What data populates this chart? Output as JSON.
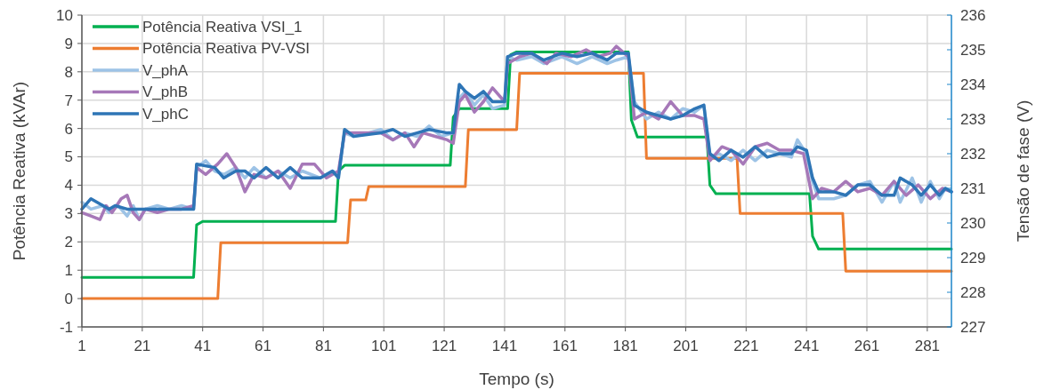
{
  "chart_data": {
    "type": "line",
    "xlabel": "Tempo (s)",
    "ylabel": "Potência Reativa (kVAr)",
    "y2label": "Tensão de fase (V)",
    "xlim": [
      1,
      289
    ],
    "xticks": [
      1,
      21,
      41,
      61,
      81,
      101,
      121,
      141,
      161,
      181,
      201,
      221,
      241,
      261,
      281
    ],
    "ylim": [
      -1,
      10
    ],
    "yticks": [
      -1,
      0,
      1,
      2,
      3,
      4,
      5,
      6,
      7,
      8,
      9,
      10
    ],
    "y2lim": [
      227,
      236
    ],
    "y2ticks": [
      227,
      228,
      229,
      230,
      231,
      232,
      233,
      234,
      235,
      236
    ],
    "grid": true,
    "legend": "top left",
    "line_style": "solid",
    "marker": "none",
    "series": [
      {
        "name": "Potência Reativa VSI_1",
        "color": "#00b050",
        "x": [
          1,
          38,
          39,
          41,
          85,
          86,
          88,
          123,
          124,
          126,
          142,
          143,
          145,
          182,
          183,
          185,
          208,
          209,
          211,
          242,
          243,
          245,
          289
        ],
        "values": [
          0.75,
          0.75,
          2.6,
          2.72,
          2.72,
          4.5,
          4.7,
          4.7,
          6.4,
          6.7,
          6.7,
          8.6,
          8.7,
          8.7,
          6.3,
          5.7,
          5.7,
          4.0,
          3.7,
          3.7,
          2.2,
          1.75,
          1.75
        ]
      },
      {
        "name": "Potência Reativa PV-VSI",
        "color": "#ed7d31",
        "x": [
          1,
          46,
          47,
          89,
          90,
          95,
          96,
          128,
          129,
          145,
          146,
          187,
          188,
          218,
          219,
          253,
          254,
          289
        ],
        "values": [
          0,
          0,
          1.97,
          1.97,
          3.48,
          3.48,
          3.95,
          3.95,
          5.96,
          5.96,
          7.95,
          7.95,
          4.95,
          4.95,
          3.0,
          3.0,
          0.97,
          0.97
        ]
      },
      {
        "name": "V_phA",
        "color": "#9dc3e6",
        "axis": "y2",
        "x": [
          1,
          4,
          8,
          10,
          13,
          16,
          18,
          20,
          22,
          26,
          30,
          34,
          38,
          39,
          42,
          45,
          48,
          52,
          55,
          58,
          62,
          66,
          70,
          74,
          80,
          84,
          86,
          88,
          91,
          96,
          100,
          104,
          108,
          112,
          116,
          120,
          124,
          126,
          128,
          131,
          134,
          137,
          141,
          142,
          145,
          150,
          154,
          160,
          165,
          170,
          175,
          178,
          182,
          184,
          188,
          192,
          196,
          200,
          204,
          207,
          209,
          212,
          216,
          220,
          224,
          228,
          232,
          236,
          238,
          241,
          243,
          245,
          250,
          254,
          258,
          262,
          266,
          270,
          272,
          276,
          279,
          282,
          285,
          287,
          289
        ],
        "values": [
          230.6,
          230.4,
          230.5,
          230.3,
          230.5,
          230.2,
          230.5,
          230.1,
          230.4,
          230.5,
          230.4,
          230.5,
          230.4,
          231.6,
          231.8,
          231.5,
          231.4,
          231.6,
          231.3,
          231.6,
          231.3,
          231.5,
          231.3,
          231.5,
          231.3,
          231.5,
          231.4,
          232.6,
          232.5,
          232.6,
          232.7,
          232.4,
          232.6,
          232.5,
          232.8,
          232.5,
          232.6,
          233.6,
          233.8,
          233.4,
          233.7,
          233.3,
          233.4,
          234.8,
          234.7,
          234.8,
          234.6,
          234.8,
          234.6,
          234.8,
          234.6,
          234.7,
          234.8,
          233.5,
          233.0,
          233.2,
          233.0,
          233.3,
          233.2,
          233.4,
          231.9,
          232.0,
          231.8,
          232.1,
          231.8,
          232.1,
          232.0,
          231.9,
          232.4,
          232.0,
          231.2,
          230.7,
          230.7,
          230.8,
          231.1,
          231.2,
          230.6,
          231.2,
          230.6,
          231.3,
          230.6,
          231.2,
          230.7,
          231.0,
          230.9
        ]
      },
      {
        "name": "V_phB",
        "color": "#a678b8",
        "axis": "y2",
        "x": [
          1,
          4,
          7,
          9,
          11,
          14,
          16,
          18,
          20,
          22,
          26,
          30,
          34,
          38,
          39,
          42,
          46,
          49,
          52,
          55,
          58,
          62,
          66,
          70,
          74,
          78,
          82,
          86,
          88,
          92,
          96,
          100,
          104,
          108,
          111,
          114,
          118,
          122,
          124,
          126,
          128,
          131,
          134,
          137,
          141,
          142,
          146,
          150,
          155,
          158,
          163,
          168,
          172,
          176,
          178,
          182,
          184,
          188,
          192,
          196,
          200,
          204,
          207,
          209,
          213,
          216,
          220,
          224,
          228,
          232,
          236,
          240,
          243,
          246,
          250,
          254,
          258,
          262,
          266,
          270,
          274,
          278,
          282,
          286,
          289
        ],
        "values": [
          230.3,
          230.2,
          230.1,
          230.5,
          230.3,
          230.7,
          230.8,
          230.3,
          230.1,
          230.4,
          230.3,
          230.4,
          230.4,
          230.5,
          231.6,
          231.4,
          231.7,
          232.0,
          231.6,
          230.9,
          231.4,
          231.3,
          231.5,
          231.0,
          231.7,
          231.7,
          231.3,
          231.5,
          232.6,
          232.6,
          232.6,
          232.6,
          232.4,
          232.6,
          232.2,
          232.6,
          232.5,
          232.4,
          232.3,
          233.5,
          233.7,
          233.2,
          233.5,
          233.9,
          233.5,
          234.6,
          234.8,
          234.9,
          234.6,
          234.9,
          234.8,
          235.0,
          234.8,
          234.9,
          235.1,
          234.8,
          233.0,
          233.2,
          233.0,
          233.5,
          233.1,
          233.1,
          233.0,
          231.8,
          232.2,
          232.1,
          231.7,
          232.2,
          232.3,
          232.1,
          232.1,
          232.0,
          230.7,
          231.0,
          230.9,
          231.2,
          230.9,
          231.0,
          230.8,
          231.2,
          230.8,
          231.1,
          230.7,
          231.0,
          230.9
        ]
      },
      {
        "name": "V_phC",
        "color": "#2e75b6",
        "axis": "y2",
        "x": [
          1,
          4,
          8,
          10,
          12,
          16,
          18,
          22,
          26,
          30,
          34,
          38,
          39,
          45,
          48,
          52,
          55,
          58,
          62,
          66,
          70,
          74,
          80,
          84,
          86,
          88,
          91,
          100,
          104,
          108,
          112,
          116,
          122,
          124,
          126,
          128,
          131,
          134,
          137,
          141,
          142,
          145,
          150,
          154,
          160,
          165,
          170,
          175,
          178,
          182,
          184,
          188,
          192,
          196,
          200,
          204,
          207,
          209,
          212,
          216,
          220,
          224,
          228,
          232,
          236,
          238,
          241,
          243,
          245,
          250,
          254,
          258,
          262,
          266,
          270,
          272,
          276,
          279,
          282,
          285,
          287,
          289
        ],
        "values": [
          230.4,
          230.7,
          230.5,
          230.4,
          230.5,
          230.4,
          230.4,
          230.4,
          230.4,
          230.4,
          230.4,
          230.4,
          231.7,
          231.6,
          231.3,
          231.5,
          231.5,
          231.3,
          231.6,
          231.3,
          231.6,
          231.3,
          231.3,
          231.5,
          231.3,
          232.7,
          232.5,
          232.6,
          232.7,
          232.5,
          232.6,
          232.7,
          232.6,
          232.6,
          234.0,
          233.8,
          233.6,
          233.8,
          233.5,
          233.5,
          234.8,
          234.9,
          234.9,
          234.7,
          234.9,
          234.8,
          234.9,
          234.7,
          234.9,
          234.9,
          233.4,
          233.2,
          233.1,
          233.0,
          233.1,
          233.3,
          233.4,
          232.0,
          231.8,
          232.1,
          231.9,
          232.2,
          231.9,
          232.0,
          232.0,
          232.2,
          232.1,
          231.3,
          230.9,
          230.9,
          230.8,
          231.1,
          231.1,
          230.8,
          230.8,
          231.3,
          231.1,
          230.8,
          231.1,
          230.8,
          231.0,
          230.9
        ]
      }
    ]
  }
}
